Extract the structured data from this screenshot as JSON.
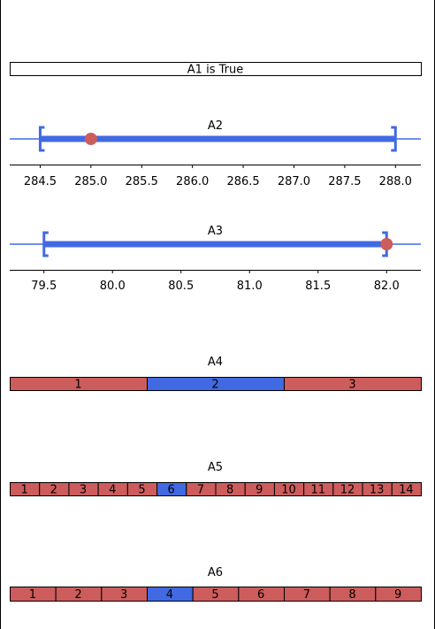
{
  "colors": {
    "primary": "#4169E1",
    "secondary": "#CD5C5C",
    "frame": "#000000"
  },
  "rows": [
    {
      "kind": "bool",
      "label": "A1 is True"
    },
    {
      "kind": "interval",
      "title": "A2",
      "lo": 284.5,
      "hi": 288.0,
      "view": [
        284.2,
        288.25
      ],
      "point": 285.0,
      "ticks": [
        "284.5",
        "285.0",
        "285.5",
        "286.0",
        "286.5",
        "287.0",
        "287.5",
        "288.0"
      ],
      "tick_values": [
        284.5,
        285.0,
        285.5,
        286.0,
        286.5,
        287.0,
        287.5,
        288.0
      ]
    },
    {
      "kind": "interval",
      "title": "A3",
      "lo": 79.5,
      "hi": 82.0,
      "view": [
        79.25,
        82.25
      ],
      "point": 82.0,
      "ticks": [
        "79.5",
        "80.0",
        "80.5",
        "81.0",
        "81.5",
        "82.0"
      ],
      "tick_values": [
        79.5,
        80.0,
        80.5,
        81.0,
        81.5,
        82.0
      ]
    },
    {
      "kind": "categorical",
      "title": "A4",
      "labels": [
        "1",
        "2",
        "3"
      ],
      "selected": "2"
    },
    {
      "kind": "categorical",
      "title": "A5",
      "labels": [
        "1",
        "2",
        "3",
        "4",
        "5",
        "6",
        "7",
        "8",
        "9",
        "10",
        "11",
        "12",
        "13",
        "14"
      ],
      "selected": "6"
    },
    {
      "kind": "categorical",
      "title": "A6",
      "labels": [
        "1",
        "2",
        "3",
        "4",
        "5",
        "6",
        "7",
        "8",
        "9"
      ],
      "selected": "4"
    }
  ]
}
